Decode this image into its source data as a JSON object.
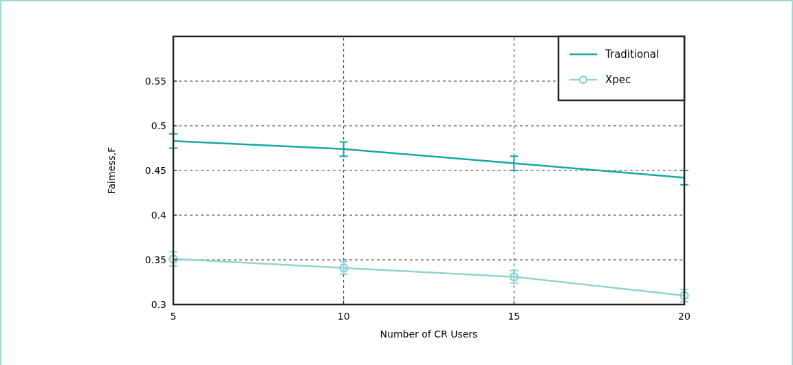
{
  "chart_data": {
    "type": "line",
    "xlabel": "Number of CR Users",
    "ylabel": "Faimess,F",
    "x": [
      5,
      10,
      15,
      20
    ],
    "xlim": [
      5,
      20
    ],
    "xticks": [
      5,
      10,
      15,
      20
    ],
    "ylim": [
      0.3,
      0.6
    ],
    "yticks": [
      0.3,
      0.35,
      0.4,
      0.45,
      0.5,
      0.55
    ],
    "grid": true,
    "legend": "top right",
    "series": [
      {
        "name": "Traditional",
        "color": "#12a8a4",
        "marker": "none",
        "values": [
          0.483,
          0.474,
          0.458,
          0.442
        ],
        "errors": [
          0.008,
          0.008,
          0.008,
          0.008
        ]
      },
      {
        "name": "Xpec",
        "color": "#8fd3d1",
        "marker": "circle",
        "values": [
          0.351,
          0.341,
          0.331,
          0.31
        ],
        "errors": [
          0.008,
          0.007,
          0.007,
          0.007
        ]
      }
    ]
  }
}
